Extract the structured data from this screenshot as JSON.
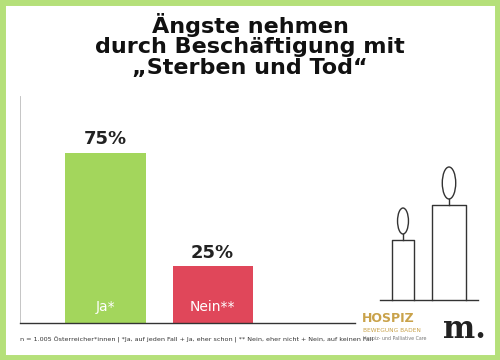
{
  "chart_data": {
    "type": "bar",
    "title": "Ängste nehmen\ndurch Beschäftigung mit\n„Sterben und Tod“",
    "categories": [
      "Ja*",
      "Nein**"
    ],
    "values": [
      75,
      25
    ],
    "value_labels": [
      "75%",
      "25%"
    ],
    "colors": [
      "#a3d65c",
      "#e0475a"
    ],
    "ylim": [
      0,
      100
    ],
    "yticks": [],
    "data_labels": true,
    "tick_labels": false,
    "footnote": "n = 1.005 Österreicher*innen | *Ja, auf jeden Fall + Ja, eher schon | ** Nein, eher nicht + Nein, auf keinen Fall",
    "logos": [
      "HOSPIZ",
      "BEWEGUNG BADEN",
      "Hospiz- und Palliative Care",
      "m."
    ]
  }
}
